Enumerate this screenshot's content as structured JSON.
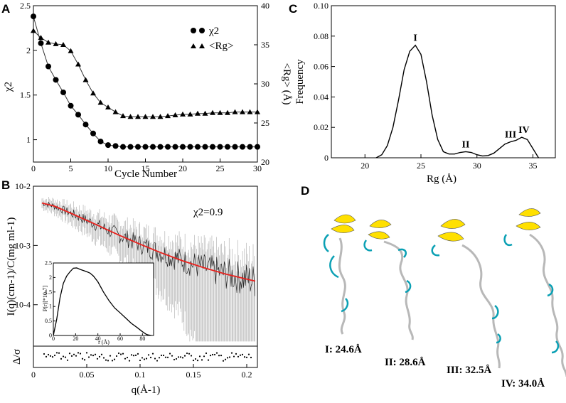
{
  "panels": {
    "a": {
      "letter": "A"
    },
    "b": {
      "letter": "B"
    },
    "c": {
      "letter": "C"
    },
    "d": {
      "letter": "D"
    }
  },
  "chart_data": [
    {
      "id": "A",
      "type": "line",
      "title": "",
      "xlabel": "Cycle Number",
      "ylabel": "χ2",
      "ylabel_right": "<Rg> (Å)",
      "xlim": [
        0,
        30
      ],
      "ylim": [
        0.75,
        2.5
      ],
      "ylim_right": [
        20,
        40
      ],
      "xticks": [
        0,
        5,
        10,
        15,
        20,
        25,
        30
      ],
      "yticks": [
        1,
        1.5,
        2,
        2.5
      ],
      "yticks_right": [
        20,
        25,
        30,
        35,
        40
      ],
      "legend": [
        "χ2",
        "<Rg>"
      ],
      "series": [
        {
          "name": "χ2",
          "marker": "circle",
          "axis": "left",
          "x": [
            0,
            1,
            2,
            3,
            4,
            5,
            6,
            7,
            8,
            9,
            10,
            11,
            12,
            13,
            14,
            15,
            16,
            17,
            18,
            19,
            20,
            21,
            22,
            23,
            24,
            25,
            26,
            27,
            28,
            29,
            30
          ],
          "values": [
            2.38,
            2.08,
            1.82,
            1.67,
            1.53,
            1.38,
            1.28,
            1.17,
            1.07,
            0.98,
            0.94,
            0.93,
            0.92,
            0.92,
            0.92,
            0.92,
            0.92,
            0.92,
            0.92,
            0.92,
            0.92,
            0.92,
            0.92,
            0.92,
            0.92,
            0.92,
            0.92,
            0.92,
            0.92,
            0.92,
            0.92
          ]
        },
        {
          "name": "<Rg>",
          "marker": "triangle",
          "axis": "right",
          "x": [
            0,
            1,
            2,
            3,
            4,
            5,
            6,
            7,
            8,
            9,
            10,
            11,
            12,
            13,
            14,
            15,
            16,
            17,
            18,
            19,
            20,
            21,
            22,
            23,
            24,
            25,
            26,
            27,
            28,
            29,
            30
          ],
          "values": [
            36.8,
            35.9,
            35.3,
            35.1,
            35.0,
            34.2,
            32.5,
            30.5,
            28.8,
            27.6,
            27.0,
            26.4,
            25.9,
            25.8,
            25.8,
            25.8,
            25.8,
            25.8,
            25.9,
            26.0,
            26.1,
            26.1,
            26.2,
            26.2,
            26.3,
            26.3,
            26.3,
            26.4,
            26.4,
            26.4,
            26.4
          ]
        }
      ]
    },
    {
      "id": "B",
      "type": "scatter",
      "title": "",
      "xlabel": "q(Å-1)",
      "ylabel": "I(q)(cm-1)/C(mg ml-1)",
      "yscale": "log",
      "xlim": [
        0,
        0.21
      ],
      "ylim": [
        2e-05,
        0.01
      ],
      "xticks": [
        0,
        0.05,
        0.1,
        0.15,
        0.2
      ],
      "xtick_labels": [
        "0",
        "0.05",
        "0.1",
        "0.15",
        "0.2"
      ],
      "ytick_labels": [
        "10-4",
        "10-3",
        "10-2"
      ],
      "annotation": "χ2=0.9",
      "fit": {
        "name": "fit",
        "q": [
          0.008,
          0.02,
          0.04,
          0.06,
          0.08,
          0.1,
          0.12,
          0.14,
          0.16,
          0.18,
          0.2,
          0.208
        ],
        "values": [
          0.0052,
          0.0046,
          0.0032,
          0.0022,
          0.0015,
          0.00105,
          0.00075,
          0.00055,
          0.00042,
          0.00033,
          0.00027,
          0.00025
        ]
      },
      "residuals": {
        "ylabel": "Δ/σ"
      },
      "inset": {
        "type": "line",
        "xlabel": "r (Å)",
        "ylabel": "P(r)[*10-7]",
        "xlim": [
          0,
          90
        ],
        "ylim": [
          0,
          2.5
        ],
        "xticks": [
          0,
          20,
          40,
          60,
          80
        ],
        "yticks": [
          0,
          0.5,
          1,
          1.5,
          2,
          2.5
        ],
        "r": [
          0,
          3,
          6,
          9,
          12,
          15,
          18,
          21,
          24,
          27,
          30,
          33,
          36,
          40,
          45,
          50,
          55,
          60,
          65,
          70,
          75,
          80,
          83,
          85,
          88
        ],
        "values": [
          0,
          0.55,
          1.3,
          1.8,
          2.05,
          2.2,
          2.32,
          2.33,
          2.28,
          2.24,
          2.2,
          2.15,
          2.05,
          1.85,
          1.5,
          1.2,
          0.95,
          0.78,
          0.6,
          0.42,
          0.28,
          0.13,
          0.05,
          0.02,
          0
        ]
      }
    },
    {
      "id": "C",
      "type": "line",
      "title": "",
      "xlabel": "Rg (Å)",
      "ylabel": "Frequency",
      "xlim": [
        17,
        37
      ],
      "ylim": [
        0,
        0.1
      ],
      "xticks": [
        20,
        25,
        30,
        35
      ],
      "yticks": [
        0,
        0.02,
        0.04,
        0.06,
        0.08,
        0.1
      ],
      "ytick_labels": [
        "0",
        "0.02",
        "0.04",
        "0.06",
        "0.08",
        "0.10"
      ],
      "x": [
        21,
        21.5,
        22,
        22.5,
        23,
        23.5,
        24,
        24.5,
        25,
        25.5,
        26,
        26.5,
        27,
        27.5,
        28,
        28.5,
        29,
        29.5,
        30,
        30.5,
        31,
        31.5,
        32,
        32.5,
        33,
        33.5,
        34,
        34.5,
        35,
        35.5
      ],
      "values": [
        0,
        0.002,
        0.008,
        0.02,
        0.038,
        0.058,
        0.07,
        0.074,
        0.068,
        0.05,
        0.028,
        0.012,
        0.004,
        0.0025,
        0.0025,
        0.0035,
        0.004,
        0.0035,
        0.002,
        0.0012,
        0.0015,
        0.003,
        0.006,
        0.009,
        0.0105,
        0.0115,
        0.0135,
        0.012,
        0.006,
        0
      ],
      "peaks": [
        {
          "label": "I",
          "x": 24.5,
          "y": 0.074
        },
        {
          "label": "II",
          "x": 29,
          "y": 0.004
        },
        {
          "label": "III",
          "x": 33,
          "y": 0.0105
        },
        {
          "label": "IV",
          "x": 34.2,
          "y": 0.0135
        }
      ]
    }
  ],
  "structures": [
    {
      "label": "I: 24.6Å"
    },
    {
      "label": "II: 28.6Å"
    },
    {
      "label": "III: 32.5Å"
    },
    {
      "label": "IV: 34.0Å"
    }
  ],
  "colors": {
    "fit": "#e8201c",
    "helix": "#ffe000",
    "coil_accent": "#0aa0b4",
    "coil": "#b8b8b8",
    "data": "#222222"
  }
}
